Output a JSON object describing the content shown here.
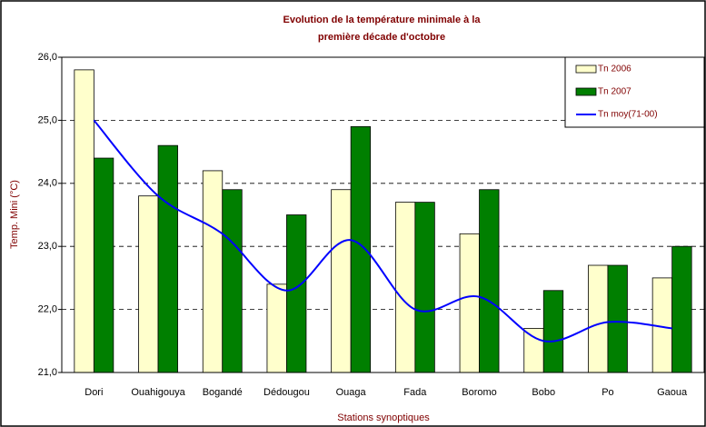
{
  "chart_data": {
    "type": "bar",
    "title": [
      "Evolution de la température minimale à la",
      "première décade d'octobre"
    ],
    "x_label": "Stations synoptiques",
    "y_label": "Temp. Mini (°C)",
    "categories": [
      "Dori",
      "Ouahigouya",
      "Bogandé",
      "Dédougou",
      "Ouaga",
      "Fada",
      "Boromo",
      "Bobo",
      "Po",
      "Gaoua"
    ],
    "series": [
      {
        "name": "Tn 2006",
        "type": "bar",
        "color": "#ffffcc",
        "values": [
          25.8,
          23.8,
          24.2,
          22.4,
          23.9,
          23.7,
          23.2,
          21.7,
          22.7,
          22.5
        ]
      },
      {
        "name": "Tn 2007",
        "type": "bar",
        "color": "#007f00",
        "values": [
          24.4,
          24.6,
          23.9,
          23.5,
          24.9,
          23.7,
          23.9,
          22.3,
          22.7,
          23.0
        ]
      },
      {
        "name": "Tn moy(71-00)",
        "type": "line",
        "color": "#0000ff",
        "values": [
          25.0,
          23.8,
          23.2,
          22.3,
          23.1,
          22.0,
          22.2,
          21.5,
          21.8,
          21.7
        ]
      }
    ],
    "ylim": [
      21,
      26
    ],
    "yticks": [
      {
        "value": 21,
        "label": "21,0"
      },
      {
        "value": 22,
        "label": "22,0"
      },
      {
        "value": 23,
        "label": "23,0"
      },
      {
        "value": 24,
        "label": "24,0"
      },
      {
        "value": 25,
        "label": "25,0"
      },
      {
        "value": 26,
        "label": "26,0"
      }
    ],
    "grid": true,
    "legend": "top-right"
  }
}
